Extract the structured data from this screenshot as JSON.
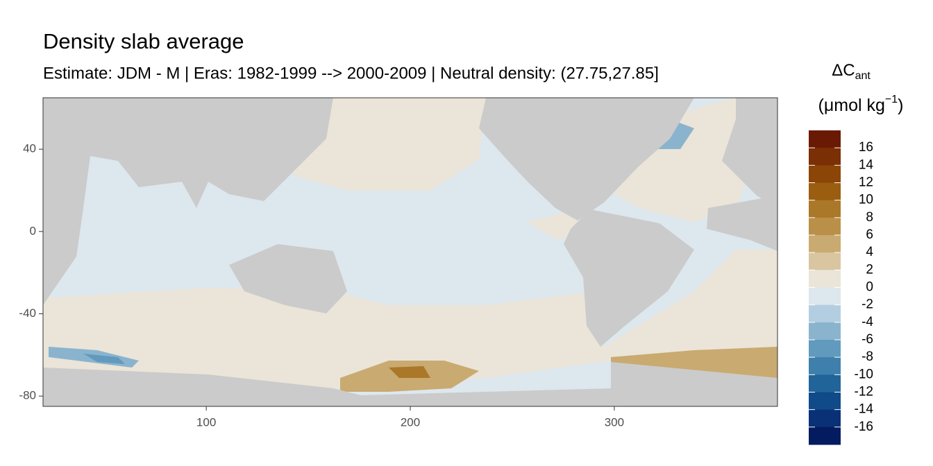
{
  "chart_data": {
    "type": "raster-map",
    "title": "Density slab average",
    "subtitle": "Estimate: JDM - M | Eras: 1982-1999 --> 2000-2009 | Neutral density: (27.75,27.85]",
    "xlim": [
      20,
      380
    ],
    "ylim": [
      -85,
      65
    ],
    "xticks": [
      100,
      200,
      300
    ],
    "yticks": [
      40,
      0,
      -40,
      -80
    ],
    "land_color": "#cbcbcb",
    "legend": {
      "title": "ΔC",
      "title_subscript": "ant",
      "unit": "(μmol kg",
      "unit_superscript": "−1",
      "unit_close": ")",
      "breaks": [
        16,
        14,
        12,
        10,
        8,
        6,
        4,
        2,
        0,
        -2,
        -4,
        -6,
        -8,
        -10,
        -12,
        -14,
        -16
      ],
      "colors": [
        "#6a1a04",
        "#7a2f05",
        "#8b4507",
        "#9b5d10",
        "#ab7729",
        "#ba9049",
        "#c9aa70",
        "#d9c6a0",
        "#ebe4d8",
        "#dde7ee",
        "#b3cee0",
        "#8ab4ce",
        "#619abd",
        "#3e80ab",
        "#21649a",
        "#104a88",
        "#0a3175",
        "#051b5f"
      ]
    }
  }
}
